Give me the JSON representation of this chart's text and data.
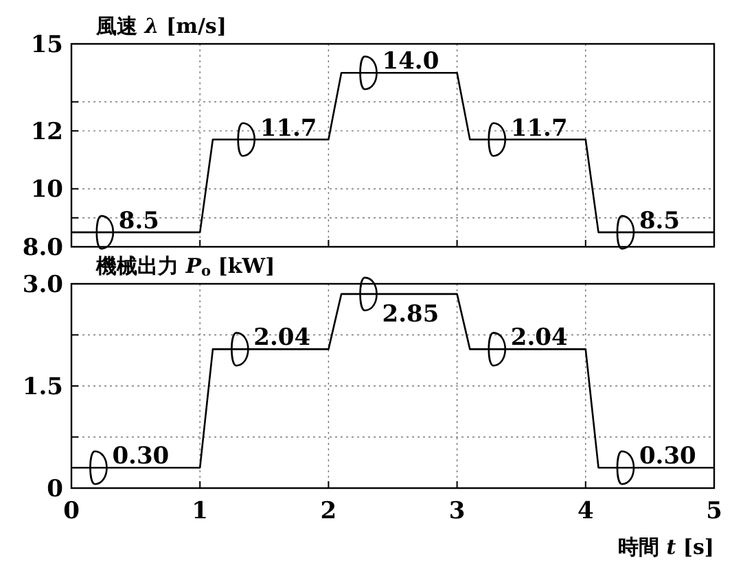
{
  "chart_data": [
    {
      "type": "line",
      "ylabel": "風速 *λ* [m/s]",
      "x": [
        0,
        1.0,
        1.1,
        2.0,
        2.1,
        3.0,
        3.1,
        4.0,
        4.1,
        5
      ],
      "values": [
        8.5,
        8.5,
        11.7,
        11.7,
        14.0,
        14.0,
        11.7,
        11.7,
        8.5,
        8.5
      ],
      "color": "#000000",
      "xlim": [
        0,
        5
      ],
      "xticks": [
        0,
        1,
        2,
        3,
        4,
        5
      ],
      "ylim": [
        8,
        15
      ],
      "yticks": [
        {
          "value": 8,
          "label": "8.0"
        },
        {
          "value": 9,
          "label": null
        },
        10,
        12,
        {
          "value": 13,
          "label": null
        },
        15
      ],
      "tick_labels": "y",
      "grid": true,
      "annotations": [
        {
          "text": "8.5",
          "x": 0.25,
          "y": 8.5
        },
        {
          "text": "11.7",
          "x": 1.35,
          "y": 11.7
        },
        {
          "text": "14.0",
          "x": 2.3,
          "y": 14.0
        },
        {
          "text": "11.7",
          "x": 3.3,
          "y": 11.7
        },
        {
          "text": "8.5",
          "x": 4.3,
          "y": 8.5
        }
      ]
    },
    {
      "type": "line",
      "ylabel": "機械出力 *P*$_{o}$ [kW]",
      "xlabel": "時間 *t* [s]",
      "x": [
        0,
        1.0,
        1.1,
        2.0,
        2.1,
        3.0,
        3.1,
        4.0,
        4.1,
        5
      ],
      "values": [
        0.3,
        0.3,
        2.04,
        2.04,
        2.85,
        2.85,
        2.04,
        2.04,
        0.3,
        0.3
      ],
      "color": "#000000",
      "xlim": [
        0,
        5
      ],
      "xticks": [
        0,
        1,
        2,
        3,
        4,
        5
      ],
      "ylim": [
        0,
        3
      ],
      "yticks": [
        0,
        {
          "value": 0.75,
          "label": null
        },
        1.5,
        {
          "value": 2.25,
          "label": null
        },
        {
          "value": 3,
          "label": "3.0"
        }
      ],
      "grid": true,
      "annotations": [
        {
          "text": "0.30",
          "x": 0.2,
          "y": 0.3
        },
        {
          "text": "2.04",
          "x": 1.3,
          "y": 2.04
        },
        {
          "text": "2.85",
          "x": 2.3,
          "y": 2.85
        },
        {
          "text": "2.04",
          "x": 3.3,
          "y": 2.04
        },
        {
          "text": "0.30",
          "x": 4.3,
          "y": 0.3
        }
      ]
    }
  ]
}
